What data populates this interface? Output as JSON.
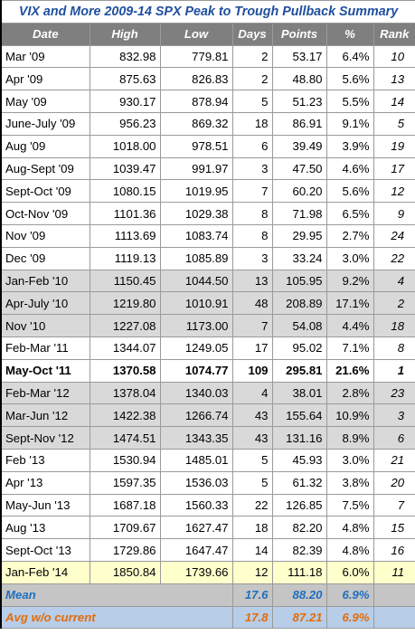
{
  "title": "VIX and More  2009-14 SPX Peak to Trough Pullback Summary",
  "headers": [
    "Date",
    "High",
    "Low",
    "Days",
    "Points",
    "%",
    "Rank"
  ],
  "rows": [
    {
      "date": "Mar '09",
      "high": "832.98",
      "low": "779.81",
      "days": "2",
      "points": "53.17",
      "pct": "6.4%",
      "rank": "10",
      "group": "white"
    },
    {
      "date": "Apr '09",
      "high": "875.63",
      "low": "826.83",
      "days": "2",
      "points": "48.80",
      "pct": "5.6%",
      "rank": "13",
      "group": "white"
    },
    {
      "date": "May '09",
      "high": "930.17",
      "low": "878.94",
      "days": "5",
      "points": "51.23",
      "pct": "5.5%",
      "rank": "14",
      "group": "white"
    },
    {
      "date": "June-July '09",
      "high": "956.23",
      "low": "869.32",
      "days": "18",
      "points": "86.91",
      "pct": "9.1%",
      "rank": "5",
      "group": "white"
    },
    {
      "date": "Aug '09",
      "high": "1018.00",
      "low": "978.51",
      "days": "6",
      "points": "39.49",
      "pct": "3.9%",
      "rank": "19",
      "group": "white"
    },
    {
      "date": "Aug-Sept '09",
      "high": "1039.47",
      "low": "991.97",
      "days": "3",
      "points": "47.50",
      "pct": "4.6%",
      "rank": "17",
      "group": "white"
    },
    {
      "date": "Sept-Oct '09",
      "high": "1080.15",
      "low": "1019.95",
      "days": "7",
      "points": "60.20",
      "pct": "5.6%",
      "rank": "12",
      "group": "white"
    },
    {
      "date": "Oct-Nov '09",
      "high": "1101.36",
      "low": "1029.38",
      "days": "8",
      "points": "71.98",
      "pct": "6.5%",
      "rank": "9",
      "group": "white"
    },
    {
      "date": "Nov '09",
      "high": "1113.69",
      "low": "1083.74",
      "days": "8",
      "points": "29.95",
      "pct": "2.7%",
      "rank": "24",
      "group": "white"
    },
    {
      "date": "Dec '09",
      "high": "1119.13",
      "low": "1085.89",
      "days": "3",
      "points": "33.24",
      "pct": "3.0%",
      "rank": "22",
      "group": "white"
    },
    {
      "date": "Jan-Feb '10",
      "high": "1150.45",
      "low": "1044.50",
      "days": "13",
      "points": "105.95",
      "pct": "9.2%",
      "rank": "4",
      "group": "gray"
    },
    {
      "date": "Apr-July '10",
      "high": "1219.80",
      "low": "1010.91",
      "days": "48",
      "points": "208.89",
      "pct": "17.1%",
      "rank": "2",
      "group": "gray"
    },
    {
      "date": "Nov '10",
      "high": "1227.08",
      "low": "1173.00",
      "days": "7",
      "points": "54.08",
      "pct": "4.4%",
      "rank": "18",
      "group": "gray"
    },
    {
      "date": "Feb-Mar '11",
      "high": "1344.07",
      "low": "1249.05",
      "days": "17",
      "points": "95.02",
      "pct": "7.1%",
      "rank": "8",
      "group": "white"
    },
    {
      "date": "May-Oct '11",
      "high": "1370.58",
      "low": "1074.77",
      "days": "109",
      "points": "295.81",
      "pct": "21.6%",
      "rank": "1",
      "group": "white",
      "bold": true
    },
    {
      "date": "Feb-Mar '12",
      "high": "1378.04",
      "low": "1340.03",
      "days": "4",
      "points": "38.01",
      "pct": "2.8%",
      "rank": "23",
      "group": "gray"
    },
    {
      "date": "Mar-Jun '12",
      "high": "1422.38",
      "low": "1266.74",
      "days": "43",
      "points": "155.64",
      "pct": "10.9%",
      "rank": "3",
      "group": "gray"
    },
    {
      "date": "Sept-Nov '12",
      "high": "1474.51",
      "low": "1343.35",
      "days": "43",
      "points": "131.16",
      "pct": "8.9%",
      "rank": "6",
      "group": "gray"
    },
    {
      "date": "Feb '13",
      "high": "1530.94",
      "low": "1485.01",
      "days": "5",
      "points": "45.93",
      "pct": "3.0%",
      "rank": "21",
      "group": "white"
    },
    {
      "date": "Apr '13",
      "high": "1597.35",
      "low": "1536.03",
      "days": "5",
      "points": "61.32",
      "pct": "3.8%",
      "rank": "20",
      "group": "white"
    },
    {
      "date": "May-Jun '13",
      "high": "1687.18",
      "low": "1560.33",
      "days": "22",
      "points": "126.85",
      "pct": "7.5%",
      "rank": "7",
      "group": "white"
    },
    {
      "date": "Aug '13",
      "high": "1709.67",
      "low": "1627.47",
      "days": "18",
      "points": "82.20",
      "pct": "4.8%",
      "rank": "15",
      "group": "white"
    },
    {
      "date": "Sept-Oct '13",
      "high": "1729.86",
      "low": "1647.47",
      "days": "14",
      "points": "82.39",
      "pct": "4.8%",
      "rank": "16",
      "group": "white"
    },
    {
      "date": "Jan-Feb '14",
      "high": "1850.84",
      "low": "1739.66",
      "days": "12",
      "points": "111.18",
      "pct": "6.0%",
      "rank": "11",
      "group": "yellow"
    }
  ],
  "mean": {
    "label": "Mean",
    "days": "17.6",
    "points": "88.20",
    "pct": "6.9%"
  },
  "avg_wo_current": {
    "label": "Avg w/o current",
    "days": "17.8",
    "points": "87.21",
    "pct": "6.9%"
  },
  "colors": {
    "title": "#1f4e9e",
    "header_bg": "#7f7f7f",
    "gray_group": "#d9d9d9",
    "yellow_row": "#ffffcc",
    "mean_text": "#1f6fc0",
    "avg_text": "#e36c09",
    "avg_bg": "#b7cde8"
  }
}
